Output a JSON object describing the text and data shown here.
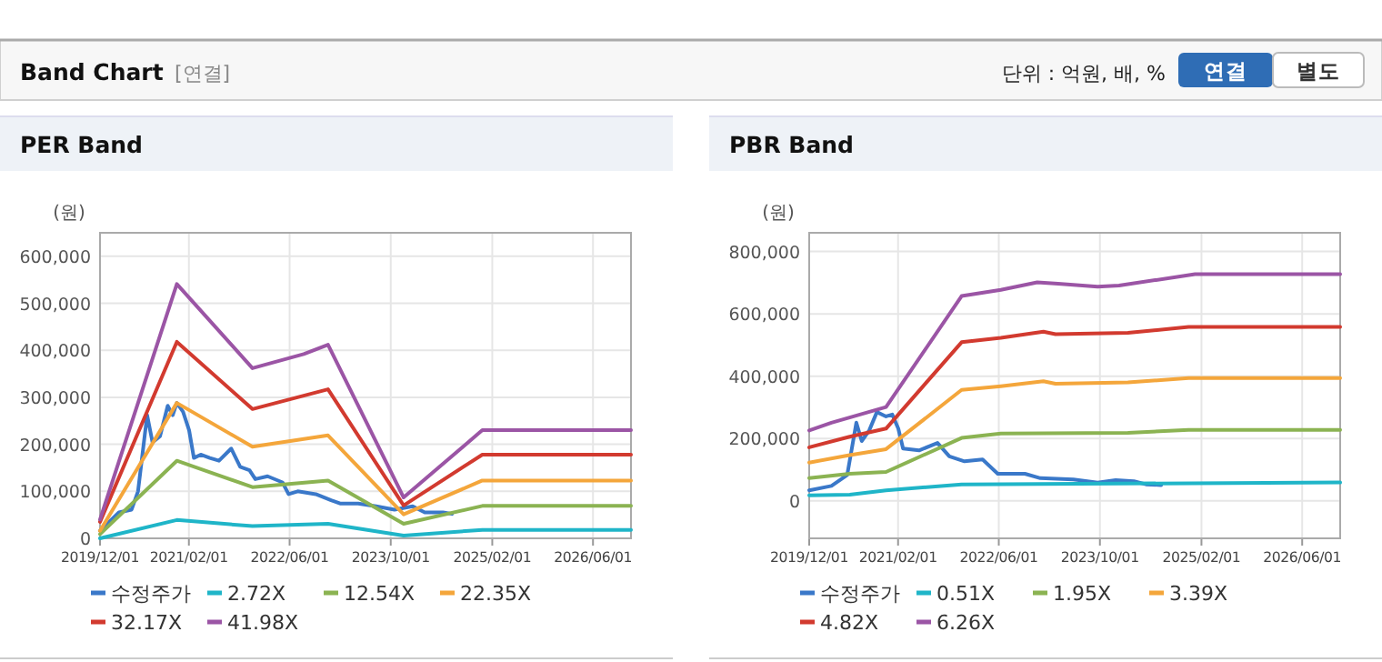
{
  "chart_data": [
    {
      "type": "other",
      "title": "Band Chart",
      "annotations": [
        "[연결]",
        "단위 : 억원, 배, %",
        "연결",
        "별도"
      ]
    },
    {
      "type": "line",
      "title": "PER Band",
      "ylabel": "(원)",
      "grid": true,
      "legend": "bottom",
      "xlim": [
        "2019-12-01",
        "2026-12-01"
      ],
      "ylim": [
        0,
        650000
      ],
      "xticks": [
        {
          "value": "2019-12-01",
          "label": "2019/12/01"
        },
        {
          "value": "2021-02-01",
          "label": "2021/02/01"
        },
        {
          "value": "2022-06-01",
          "label": "2022/06/01"
        },
        {
          "value": "2023-10-01",
          "label": "2023/10/01"
        },
        {
          "value": "2025-02-01",
          "label": "2025/02/01"
        },
        {
          "value": "2026-06-01",
          "label": "2026/06/01"
        }
      ],
      "yticks": [
        0,
        {
          "value": 100000,
          "label": "100,000"
        },
        {
          "value": 200000,
          "label": "200,000"
        },
        {
          "value": 300000,
          "label": "300,000"
        },
        {
          "value": 400000,
          "label": "400,000"
        },
        {
          "value": 500000,
          "label": "500,000"
        },
        {
          "value": 600000,
          "label": "600,000"
        }
      ],
      "series": [
        {
          "name": "수정주가",
          "color": "#3a78c9",
          "x": [
            "2019-12-01",
            "2020-03-01",
            "2020-05-01",
            "2020-06-01",
            "2020-07-15",
            "2020-08-10",
            "2020-09-15",
            "2020-10-22",
            "2020-11-15",
            "2020-12-05",
            "2021-01-04",
            "2021-02-02",
            "2021-02-25",
            "2021-03-30",
            "2021-05-13",
            "2021-06-26",
            "2021-08-24",
            "2021-10-06",
            "2021-11-20",
            "2021-12-18",
            "2022-02-15",
            "2022-04-28",
            "2022-05-27",
            "2022-07-10",
            "2022-10-05",
            "2022-12-18",
            "2023-01-30",
            "2023-04-27",
            "2023-07-23",
            "2023-10-19",
            "2024-01-15",
            "2024-03-13",
            "2024-06-09",
            "2024-07-22"
          ],
          "values": [
            16000,
            55000,
            61000,
            100000,
            262000,
            204000,
            217000,
            282000,
            262000,
            288000,
            269000,
            230000,
            171000,
            178000,
            171000,
            165000,
            191000,
            152000,
            145000,
            126000,
            132000,
            119000,
            94000,
            100000,
            94000,
            81000,
            74000,
            74000,
            68000,
            61000,
            68000,
            55000,
            55000,
            52000
          ]
        },
        {
          "name": "2.72X",
          "color": "#1fb5c8",
          "x": [
            "2019-12-01",
            "2020-12-05",
            "2021-12-04",
            "2022-12-03",
            "2023-12-02",
            "2024-12-15",
            "2026-12-01"
          ],
          "values": [
            0,
            39000,
            26000,
            31000,
            6000,
            18000,
            18000
          ]
        },
        {
          "name": "12.54X",
          "color": "#8bb352",
          "x": [
            "2019-12-01",
            "2020-12-05",
            "2021-12-04",
            "2022-12-03",
            "2023-12-02",
            "2024-12-15",
            "2026-12-01"
          ],
          "values": [
            9000,
            165000,
            109000,
            123000,
            31000,
            69000,
            69000
          ]
        },
        {
          "name": "22.35X",
          "color": "#f4a63b",
          "x": [
            "2019-12-01",
            "2020-12-05",
            "2021-12-04",
            "2022-12-03",
            "2023-12-02",
            "2024-12-15",
            "2026-12-01"
          ],
          "values": [
            16000,
            288000,
            195000,
            219000,
            51000,
            123000,
            123000
          ]
        },
        {
          "name": "32.17X",
          "color": "#d23a2f",
          "x": [
            "2019-12-01",
            "2020-12-05",
            "2021-12-04",
            "2022-12-03",
            "2023-12-02",
            "2024-12-15",
            "2026-12-01"
          ],
          "values": [
            35000,
            418000,
            275000,
            317000,
            70000,
            178000,
            178000
          ]
        },
        {
          "name": "41.98X",
          "color": "#9b55a5",
          "x": [
            "2019-12-01",
            "2020-12-05",
            "2021-12-04",
            "2022-08-08",
            "2022-12-03",
            "2023-12-02",
            "2024-12-15",
            "2026-12-01"
          ],
          "values": [
            40000,
            541000,
            362000,
            392000,
            412000,
            87000,
            230000,
            230000
          ]
        }
      ]
    },
    {
      "type": "line",
      "title": "PBR Band",
      "ylabel": "(원)",
      "grid": true,
      "legend": "bottom",
      "xlim": [
        "2019-12-01",
        "2026-12-01"
      ],
      "ylim": [
        -120000,
        860000
      ],
      "xticks": [
        {
          "value": "2019-12-01",
          "label": "2019/12/01"
        },
        {
          "value": "2021-02-01",
          "label": "2021/02/01"
        },
        {
          "value": "2022-06-01",
          "label": "2022/06/01"
        },
        {
          "value": "2023-10-01",
          "label": "2023/10/01"
        },
        {
          "value": "2025-02-01",
          "label": "2025/02/01"
        },
        {
          "value": "2026-06-01",
          "label": "2026/06/01"
        }
      ],
      "yticks": [
        0,
        {
          "value": 200000,
          "label": "200,000"
        },
        {
          "value": 400000,
          "label": "400,000"
        },
        {
          "value": 600000,
          "label": "600,000"
        },
        {
          "value": 800000,
          "label": "800,000"
        }
      ],
      "series": [
        {
          "name": "수정주가",
          "color": "#3a78c9",
          "x": [
            "2019-12-01",
            "2020-03-17",
            "2020-06-01",
            "2020-07-15",
            "2020-08-10",
            "2020-09-15",
            "2020-10-22",
            "2020-12-05",
            "2021-01-04",
            "2021-02-02",
            "2021-02-25",
            "2021-05-13",
            "2021-08-10",
            "2021-10-06",
            "2021-12-18",
            "2022-03-15",
            "2022-05-27",
            "2022-10-05",
            "2022-12-18",
            "2023-05-26",
            "2023-09-20",
            "2023-12-16",
            "2024-03-13",
            "2024-05-10",
            "2024-07-22"
          ],
          "values": [
            34000,
            48000,
            83000,
            251000,
            192000,
            226000,
            285000,
            271000,
            277000,
            232000,
            168000,
            162000,
            186000,
            143000,
            127000,
            133000,
            87000,
            87000,
            73000,
            69000,
            59000,
            67000,
            63000,
            53000,
            51000
          ]
        },
        {
          "name": "0.51X",
          "color": "#1fb5c8",
          "x": [
            "2019-12-01",
            "2020-06-13",
            "2020-12-05",
            "2021-12-04",
            "2026-12-01"
          ],
          "values": [
            18000,
            20000,
            34000,
            53000,
            59000
          ]
        },
        {
          "name": "1.95X",
          "color": "#8bb352",
          "x": [
            "2019-12-01",
            "2020-06-13",
            "2020-12-05",
            "2021-12-04",
            "2022-06-11",
            "2024-02-13",
            "2024-12-01",
            "2026-12-01"
          ],
          "values": [
            73000,
            87000,
            93000,
            202000,
            216000,
            218000,
            228000,
            228000
          ]
        },
        {
          "name": "3.39X",
          "color": "#f4a63b",
          "x": [
            "2019-12-01",
            "2020-06-13",
            "2020-12-05",
            "2021-12-04",
            "2022-06-11",
            "2023-01-02",
            "2023-03-01",
            "2024-02-13",
            "2024-12-01",
            "2026-12-01"
          ],
          "values": [
            123000,
            147000,
            166000,
            356000,
            368000,
            384000,
            376000,
            380000,
            394000,
            394000
          ]
        },
        {
          "name": "4.82X",
          "color": "#d23a2f",
          "x": [
            "2019-12-01",
            "2020-06-13",
            "2020-12-05",
            "2021-12-04",
            "2022-06-11",
            "2023-01-02",
            "2023-03-01",
            "2024-02-13",
            "2024-12-01",
            "2026-12-01"
          ],
          "values": [
            172000,
            206000,
            232000,
            509000,
            523000,
            543000,
            535000,
            539000,
            558000,
            558000
          ]
        },
        {
          "name": "6.26X",
          "color": "#9b55a5",
          "x": [
            "2019-12-01",
            "2020-03-17",
            "2020-12-05",
            "2021-12-04",
            "2022-06-11",
            "2022-12-03",
            "2023-03-14",
            "2023-09-20",
            "2024-01-01",
            "2025-01-01",
            "2026-12-01"
          ],
          "values": [
            226000,
            251000,
            301000,
            657000,
            677000,
            701000,
            697000,
            687000,
            691000,
            727000,
            727000
          ]
        }
      ]
    }
  ]
}
